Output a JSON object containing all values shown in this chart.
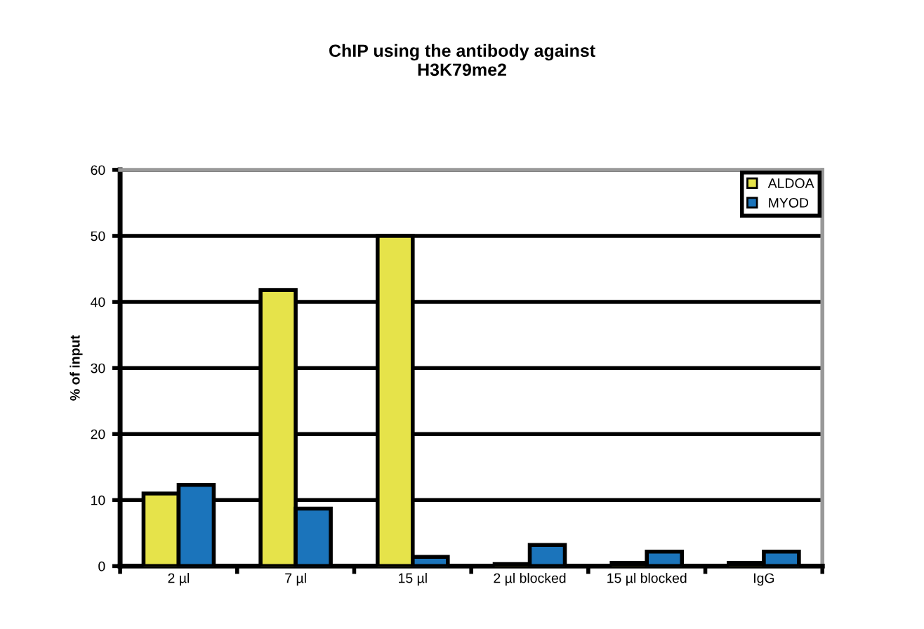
{
  "chart_data": {
    "type": "bar",
    "title": "ChIP using the antibody against\nH3K79me2",
    "ylabel": "% of input",
    "categories": [
      "2 µl",
      "7 µl",
      "15 µl",
      "2 µl blocked",
      "15 µl blocked",
      "IgG"
    ],
    "series": [
      {
        "name": "ALDOA",
        "color": "#e6e34a",
        "values": [
          11,
          41.8,
          50,
          0.3,
          0.5,
          0.5
        ]
      },
      {
        "name": "MYOD",
        "color": "#1b74bb",
        "values": [
          12.3,
          8.7,
          1.4,
          3.2,
          2.2,
          2.2
        ]
      }
    ],
    "ylim": [
      0,
      60
    ],
    "yticks": [
      0,
      10,
      20,
      30,
      40,
      50,
      60
    ],
    "grid": "y",
    "legend": "top right"
  }
}
